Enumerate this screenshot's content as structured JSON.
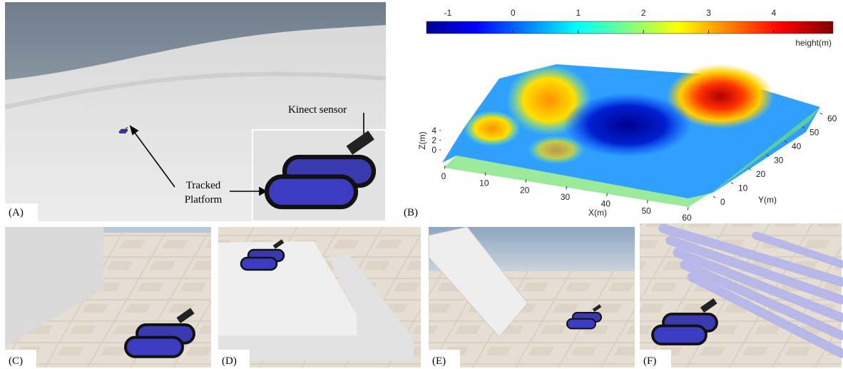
{
  "panels": {
    "a": {
      "label": "(A)",
      "callouts": {
        "sensor": "Kinect sensor",
        "platform": "Tracked\nPlatform"
      }
    },
    "b": {
      "label": "(B)",
      "colorbar": {
        "ticks": [
          -1,
          0,
          1,
          2,
          3,
          4
        ],
        "unit": "height(m)"
      },
      "axes": {
        "x_label": "X(m)",
        "y_label": "Y(m)",
        "z_label": "Z(m)",
        "x_ticks": [
          0,
          10,
          20,
          30,
          40,
          50,
          60
        ],
        "y_ticks": [
          0,
          10,
          20,
          30,
          40,
          50,
          60
        ],
        "z_ticks": [
          0,
          2,
          4
        ]
      }
    },
    "c": {
      "label": "(C)"
    },
    "d": {
      "label": "(D)"
    },
    "e": {
      "label": "(E)"
    },
    "f": {
      "label": "(F)"
    }
  }
}
